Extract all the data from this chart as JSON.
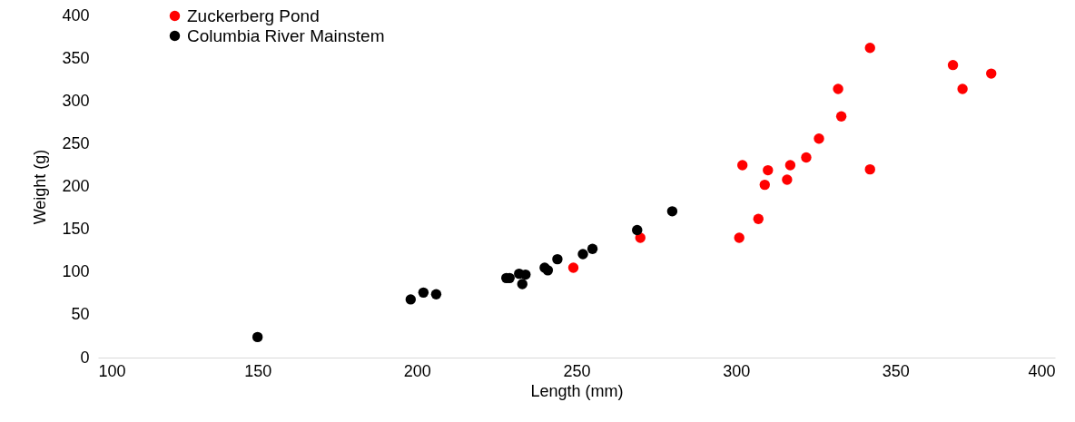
{
  "chart_data": {
    "type": "scatter",
    "xlabel": "Length (mm)",
    "ylabel": "Weight (g)",
    "xlim": [
      100,
      400
    ],
    "xticks": [
      100,
      150,
      200,
      250,
      300,
      350,
      400
    ],
    "ylim": [
      0,
      400
    ],
    "yticks": [
      0,
      50,
      100,
      150,
      200,
      250,
      300,
      350,
      400
    ],
    "grid": false,
    "legend": "top left",
    "marker": "circle",
    "series": [
      {
        "name": "Zuckerberg Pond",
        "color": "#ff0000",
        "x": [
          249,
          270,
          301,
          302,
          307,
          309,
          310,
          316,
          317,
          322,
          326,
          332,
          333,
          342,
          342,
          368,
          371,
          380
        ],
        "values": [
          105,
          140,
          140,
          225,
          162,
          202,
          219,
          208,
          225,
          234,
          256,
          314,
          282,
          220,
          362,
          342,
          314,
          332
        ]
      },
      {
        "name": "Columbia River Mainstem",
        "color": "#000000",
        "x": [
          150,
          198,
          202,
          206,
          228,
          229,
          232,
          233,
          234,
          240,
          241,
          244,
          252,
          255,
          269,
          280
        ],
        "values": [
          24,
          68,
          76,
          74,
          93,
          93,
          98,
          86,
          97,
          105,
          102,
          115,
          121,
          127,
          149,
          171
        ]
      }
    ]
  }
}
